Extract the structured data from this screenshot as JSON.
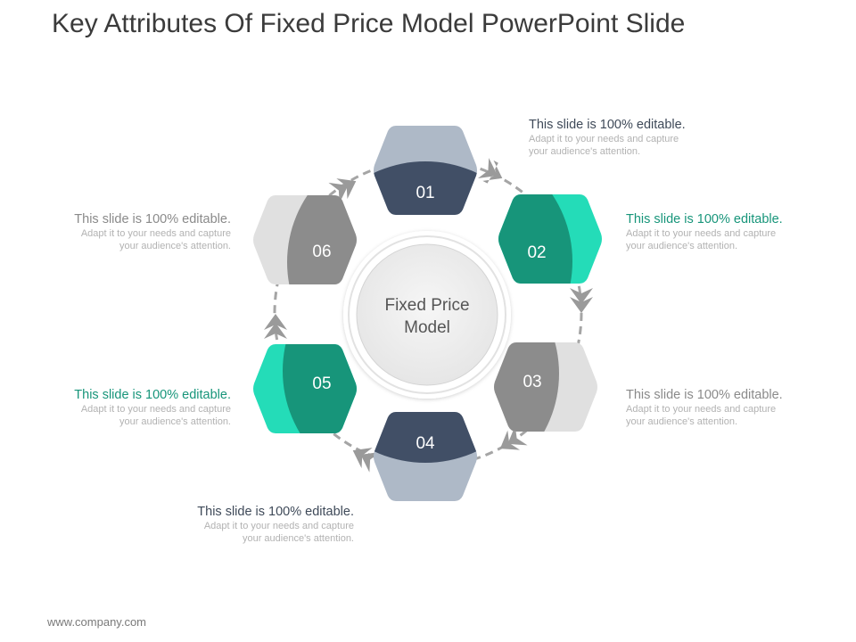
{
  "slide": {
    "title": "Key Attributes Of Fixed Price Model PowerPoint Slide",
    "footer": "www.company.com"
  },
  "center": {
    "line1": "Fixed Price",
    "line2": "Model"
  },
  "steps": [
    {
      "number": "01",
      "heading": "This slide is 100% editable.",
      "body": "Adapt it to your needs and capture your audience's attention."
    },
    {
      "number": "02",
      "heading": "This slide is 100% editable.",
      "body": "Adapt it to your needs and capture your audience's attention."
    },
    {
      "number": "03",
      "heading": "This slide is 100% editable.",
      "body": "Adapt it to your needs and capture your audience's attention."
    },
    {
      "number": "04",
      "heading": "This slide is 100% editable.",
      "body": "Adapt it to your needs and capture your audience's attention."
    },
    {
      "number": "05",
      "heading": "This slide is 100% editable.",
      "body": "Adapt it to your needs and capture your audience's attention."
    },
    {
      "number": "06",
      "heading": "This slide is 100% editable.",
      "body": "Adapt it to your needs and capture your audience's attention."
    }
  ],
  "colors": {
    "navy": "#414f66",
    "navy_light": "#aeb9c7",
    "teal": "#17957a",
    "teal_light": "#24dcb8",
    "grey": "#8c8c8c",
    "grey_light": "#e0e0e0",
    "arrow": "#9a9a9a"
  }
}
